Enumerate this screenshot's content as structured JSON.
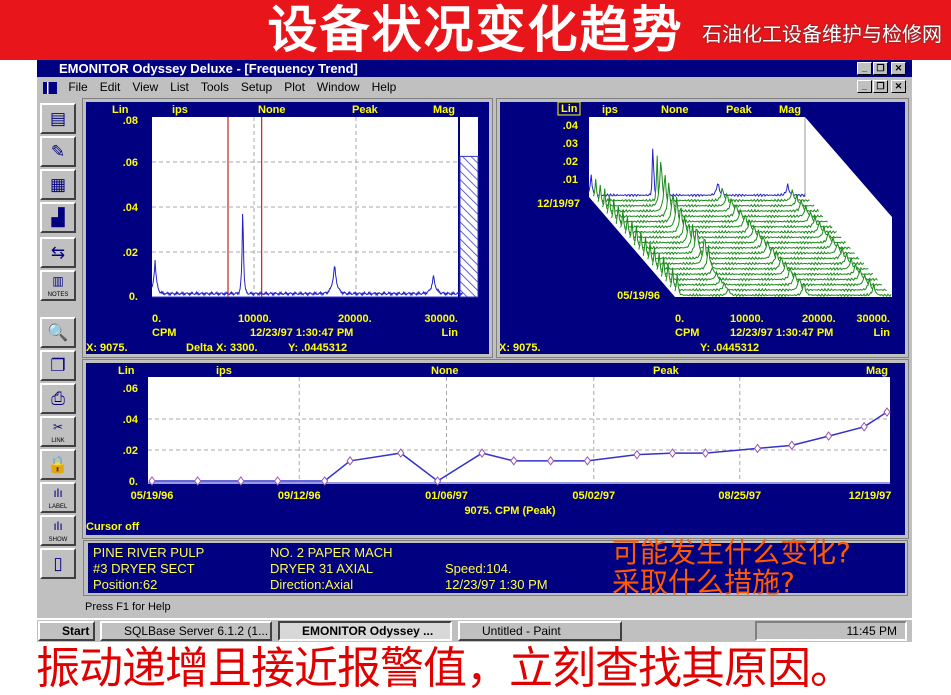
{
  "banner": {
    "title": "设备状况变化趋势"
  },
  "window": {
    "title": "EMONITOR Odyssey Deluxe - [Frequency Trend]",
    "controls": [
      "_",
      "❐",
      "✕"
    ]
  },
  "menu": [
    "File",
    "Edit",
    "View",
    "List",
    "Tools",
    "Setup",
    "Plot",
    "Window",
    "Help"
  ],
  "toolbar": [
    {
      "icon": "route-icon",
      "glyph": "▤"
    },
    {
      "icon": "list-edit-icon",
      "glyph": "✎"
    },
    {
      "icon": "documents-icon",
      "glyph": "▦"
    },
    {
      "icon": "spectrum-icon",
      "glyph": "▟"
    },
    {
      "icon": "transfer-icon",
      "glyph": "⇆"
    },
    {
      "icon": "notes-icon",
      "glyph": "▥",
      "label": "NOTES"
    },
    {
      "icon": "zoom-icon",
      "glyph": "🔍"
    },
    {
      "icon": "copy-icon",
      "glyph": "❐"
    },
    {
      "icon": "print-icon",
      "glyph": "⎙"
    },
    {
      "icon": "link-icon",
      "glyph": "✂",
      "label": "LINK"
    },
    {
      "icon": "lock-icon",
      "glyph": "🔒"
    },
    {
      "icon": "label-icon",
      "glyph": "ılı",
      "label": "LABEL"
    },
    {
      "icon": "show-icon",
      "glyph": "ılı",
      "label": "SHOW"
    },
    {
      "icon": "remote-icon",
      "glyph": "▯"
    }
  ],
  "spectrum": {
    "header": [
      "Lin",
      "ips",
      "None",
      "Peak",
      "Mag"
    ],
    "y_ticks": [
      ".08",
      ".06",
      ".04",
      ".02",
      "0."
    ],
    "x_ticks": [
      "0.",
      "10000.",
      "20000.",
      "30000."
    ],
    "x_unit": "CPM",
    "date": "12/23/97 1:30:47 PM",
    "scale": "Lin",
    "readout_x": "X: 9075.",
    "readout_delta": "Delta X: 3300.",
    "readout_y": "Y: .0445312"
  },
  "waterfall": {
    "header": [
      "Lin",
      "ips",
      "None",
      "Peak",
      "Mag"
    ],
    "y_ticks": [
      ".04",
      ".03",
      ".02",
      ".01"
    ],
    "date_back": "12/19/97",
    "date_front": "05/19/96",
    "x_ticks": [
      "0.",
      "10000.",
      "20000.",
      "30000."
    ],
    "x_unit": "CPM",
    "date": "12/23/97 1:30:47 PM",
    "scale": "Lin",
    "readout_x": "X: 9075.",
    "readout_y": "Y: .0445312"
  },
  "trend": {
    "header": [
      "Lin",
      "ips",
      "None",
      "Peak",
      "Mag"
    ],
    "y_ticks": [
      ".06",
      ".04",
      ".02",
      "0."
    ],
    "x_ticks": [
      "05/19/96",
      "09/12/96",
      "01/06/97",
      "05/02/97",
      "08/25/97",
      "12/19/97"
    ],
    "xlabel": "9075. CPM (Peak)",
    "cursor": "Cursor off"
  },
  "chart_data": [
    {
      "type": "line",
      "title": "",
      "xlabel": "CPM",
      "ylabel": "ips",
      "xlim": [
        0,
        30000
      ],
      "ylim": [
        0,
        0.08
      ],
      "grid": true,
      "peaks": [
        {
          "x": 300,
          "y": 0.015
        },
        {
          "x": 8900,
          "y": 0.0445
        },
        {
          "x": 17900,
          "y": 0.013
        },
        {
          "x": 27600,
          "y": 0.008
        }
      ],
      "baseline": 0.0015,
      "cursors": [
        7450,
        10750
      ],
      "mag_level": 0.0625
    },
    {
      "type": "area",
      "title": "",
      "xlabel": "CPM",
      "ylabel": "ips",
      "ylim": [
        0,
        0.04
      ],
      "xlim": [
        0,
        30000
      ],
      "dates": [
        "05/19/96",
        "12/19/97"
      ]
    },
    {
      "type": "line",
      "xlabel": "9075. CPM (Peak)",
      "ylabel": "ips",
      "ylim": [
        0,
        0.06
      ],
      "xlim": [
        "1996-05-19",
        "1997-12-19"
      ],
      "grid": true,
      "x": [
        "1996-05-19",
        "1996-06-24",
        "1996-07-28",
        "1996-08-26",
        "1996-10-02",
        "1996-10-22",
        "1996-12-01",
        "1996-12-30",
        "1997-02-03",
        "1997-02-28",
        "1997-03-29",
        "1997-04-27",
        "1997-06-05",
        "1997-07-03",
        "1997-07-29",
        "1997-09-08",
        "1997-10-05",
        "1997-11-03",
        "1997-12-01",
        "1997-12-19"
      ],
      "values": [
        0.0,
        0.0,
        0.0,
        0.0,
        0.0,
        0.013,
        0.018,
        0.0,
        0.018,
        0.013,
        0.013,
        0.013,
        0.017,
        0.018,
        0.018,
        0.021,
        0.023,
        0.029,
        0.035,
        0.0445
      ]
    }
  ],
  "info": {
    "l1c1": "PINE RIVER PULP",
    "l1c2": "NO. 2 PAPER MACH",
    "l2c1": "#3 DRYER SECT",
    "l2c2": "DRYER 31 AXIAL",
    "l2c3": "Speed:104.",
    "l3c1": "Position:62",
    "l3c2": "Direction:Axial",
    "l3c3": "12/23/97 1:30 PM"
  },
  "status": "Press F1 for Help",
  "taskbar": {
    "start": "Start",
    "tasks": [
      "SQLBase Server 6.1.2 (1...",
      "EMONITOR Odyssey ...",
      "Untitled - Paint"
    ],
    "clock": "11:45 PM"
  },
  "overlay": {
    "q1": "可能发生什么变化?",
    "q2": "采取什么措施?",
    "note": "振动递增且接近报警值，立刻查找其原因。",
    "watermark": "石油化工设备维护与检修网"
  },
  "colors": {
    "banner": "#e8161b",
    "panel": "#000080",
    "label": "#ffff00",
    "trace": "#2222cc",
    "waterfall": "#1a8a1a",
    "cursor": "#cc2222",
    "overlay_q": "#ff5a00",
    "overlay_note": "#e00000"
  }
}
